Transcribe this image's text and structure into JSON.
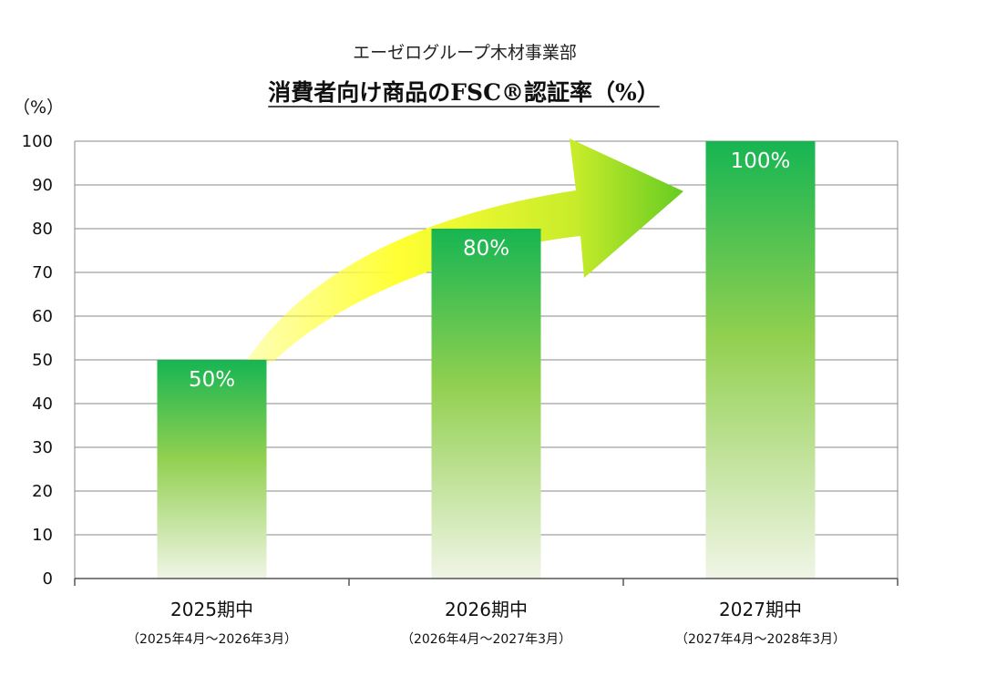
{
  "chart_data": {
    "type": "bar",
    "subtitle": "エーゼログループ木材事業部",
    "title": "消費者向け商品のFSC®認証率（%）",
    "ylabel": "（%）",
    "ylim": [
      0,
      100
    ],
    "yticks": [
      0,
      10,
      20,
      30,
      40,
      50,
      60,
      70,
      80,
      90,
      100
    ],
    "grid": true,
    "categories": [
      "2025期中",
      "2026期中",
      "2027期中"
    ],
    "periods": [
      "（2025年4月～2026年3月）",
      "（2026年4月～2027年3月）",
      "（2027年4月～2028年3月）"
    ],
    "values": [
      50,
      80,
      100
    ],
    "data_labels": [
      "50%",
      "80%",
      "100%"
    ],
    "annotation": "upward-trend-arrow"
  },
  "colors": {
    "bar_top": "#16b552",
    "bar_mid": "#92d050",
    "bar_bottom": "#f0f5e6",
    "arrow_start": "#ffff33",
    "arrow_end": "#66cc22",
    "grid": "#888888",
    "axis": "#555555"
  }
}
